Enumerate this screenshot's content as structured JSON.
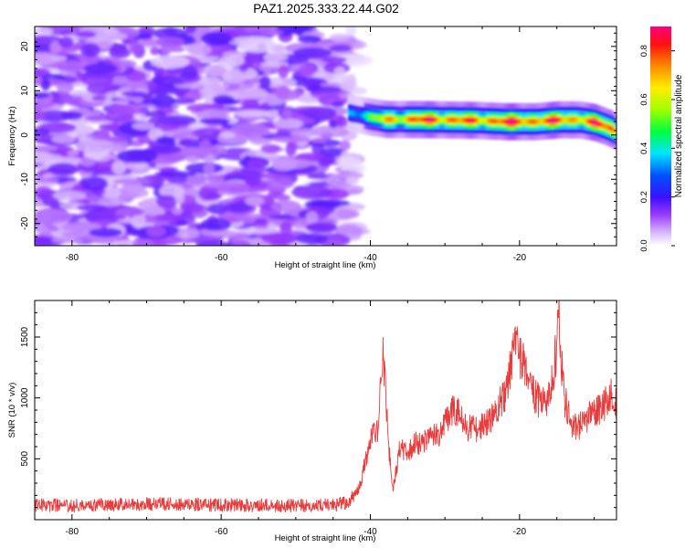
{
  "figure_title": "PAZ1.2025.333.22.44.G02",
  "chart_data": [
    {
      "type": "heatmap",
      "xlabel": "Height of straight line (km)",
      "ylabel": "Frequency (Hz)",
      "xlim": [
        -85,
        -7
      ],
      "ylim": [
        -25,
        24.5
      ],
      "x_ticks": [
        -80,
        -60,
        -40,
        -20
      ],
      "y_ticks": [
        -20,
        -10,
        0,
        10,
        20
      ],
      "description_of_field": {
        "noise_region_x": [
          -85,
          -42
        ],
        "noise_level_approx": 0.1,
        "signal_ridge": [
          {
            "x": -43,
            "frequency": 5.0,
            "amplitude": 0.35
          },
          {
            "x": -40,
            "frequency": 4.0,
            "amplitude": 0.55
          },
          {
            "x": -38,
            "frequency": 3.5,
            "amplitude": 0.7
          },
          {
            "x": -34,
            "frequency": 3.5,
            "amplitude": 0.85
          },
          {
            "x": -30,
            "frequency": 3.4,
            "amplitude": 0.85
          },
          {
            "x": -26,
            "frequency": 3.3,
            "amplitude": 0.8
          },
          {
            "x": -22,
            "frequency": 3.0,
            "amplitude": 0.9
          },
          {
            "x": -18,
            "frequency": 3.0,
            "amplitude": 0.85
          },
          {
            "x": -15,
            "frequency": 3.4,
            "amplitude": 0.85
          },
          {
            "x": -12,
            "frequency": 3.4,
            "amplitude": 0.8
          },
          {
            "x": -10,
            "frequency": 2.8,
            "amplitude": 0.85
          },
          {
            "x": -8,
            "frequency": 1.5,
            "amplitude": 0.9
          },
          {
            "x": -7,
            "frequency": 0.5,
            "amplitude": 0.7
          }
        ]
      }
    },
    {
      "type": "colorbar",
      "label": "Normalized spectral amplitude",
      "range": [
        0.0,
        0.9
      ],
      "ticks": [
        0.0,
        0.2,
        0.4,
        0.6,
        0.8
      ]
    },
    {
      "type": "line",
      "xlabel": "Height of straight line (km)",
      "ylabel": "SNR (10 * v/v)",
      "xlim": [
        -85,
        -7
      ],
      "ylim": [
        0,
        1800
      ],
      "x_ticks": [
        -80,
        -60,
        -40,
        -20
      ],
      "y_ticks": [
        500,
        1000,
        1500
      ],
      "color": "#e83c3c",
      "series_envelope": {
        "x": [
          -85,
          -80,
          -70,
          -60,
          -50,
          -45,
          -43,
          -41.5,
          -40.5,
          -40,
          -39.5,
          -39,
          -38.7,
          -38.3,
          -38,
          -37.5,
          -37,
          -36.5,
          -36,
          -35,
          -34,
          -33,
          -32,
          -31,
          -30,
          -29,
          -28,
          -27,
          -26,
          -25,
          -24,
          -23,
          -22,
          -21.5,
          -20.5,
          -20,
          -19.5,
          -19,
          -18,
          -17,
          -16,
          -15.5,
          -15,
          -14.8,
          -14.5,
          -14,
          -13,
          -12,
          -11,
          -10,
          -9,
          -8,
          -7.5,
          -7
        ],
        "y": [
          120,
          115,
          130,
          120,
          115,
          120,
          140,
          260,
          520,
          650,
          760,
          720,
          1000,
          1380,
          1080,
          560,
          260,
          430,
          600,
          550,
          640,
          620,
          720,
          680,
          790,
          900,
          860,
          760,
          740,
          770,
          800,
          930,
          1020,
          1150,
          1480,
          1320,
          1280,
          1160,
          1020,
          950,
          1020,
          1180,
          1450,
          1800,
          1420,
          1000,
          780,
          760,
          830,
          880,
          920,
          990,
          1060,
          940
        ]
      }
    }
  ]
}
